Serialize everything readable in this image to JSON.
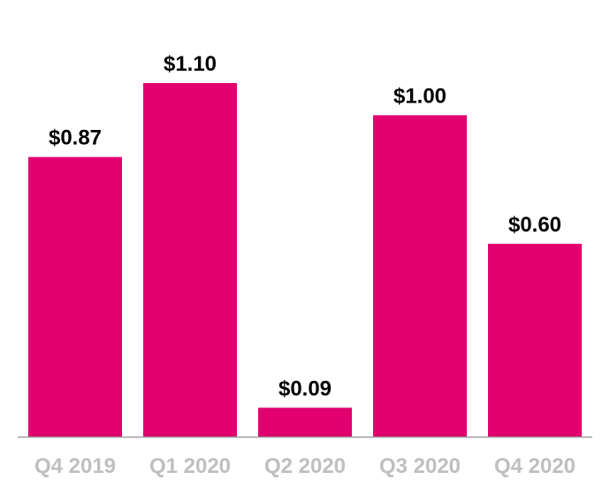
{
  "chart_data": {
    "type": "bar",
    "categories": [
      "Q4 2019",
      "Q1 2020",
      "Q2 2020",
      "Q3 2020",
      "Q4 2020"
    ],
    "values": [
      0.87,
      1.1,
      0.09,
      1.0,
      0.6
    ],
    "value_labels": [
      "$0.87",
      "$1.10",
      "$0.09",
      "$1.00",
      "$0.60"
    ],
    "title": "",
    "xlabel": "",
    "ylabel": "",
    "ylim": [
      0,
      1.1
    ],
    "grid": false,
    "legend": "none",
    "bar_color": "#e2006f",
    "axis_color": "#9e9e9e",
    "tick_label_color": "#bfbfbf"
  }
}
